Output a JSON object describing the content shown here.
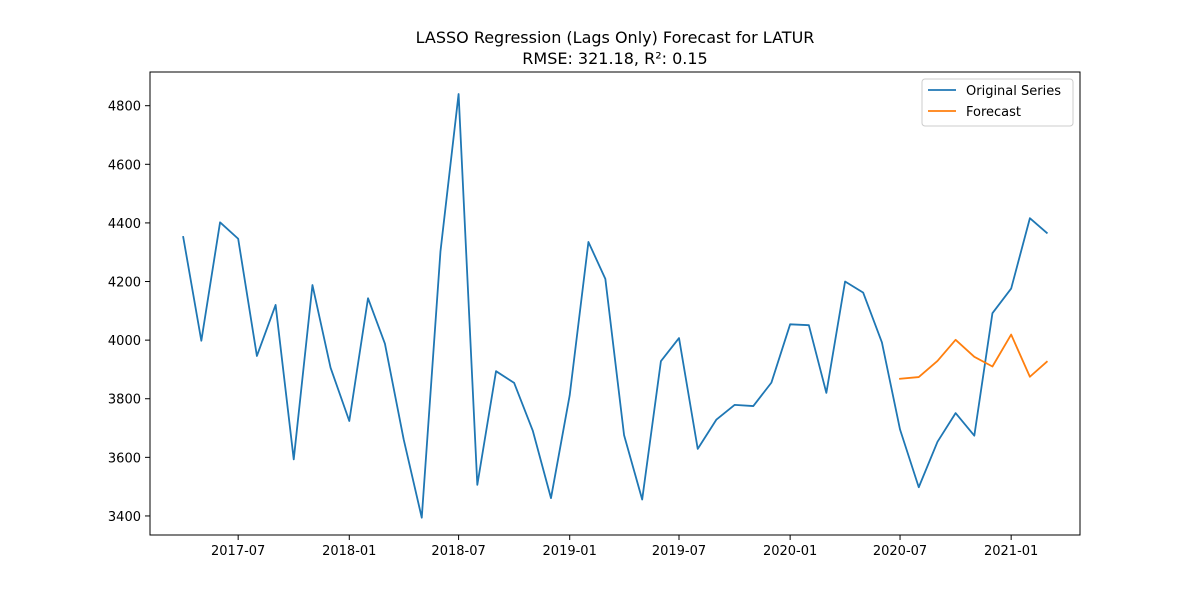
{
  "chart_data": {
    "type": "line",
    "title": "LASSO Regression (Lags Only) Forecast for LATUR",
    "subtitle": "RMSE: 321.18, R²: 0.15",
    "xlabel": "",
    "ylabel": "",
    "xlim": [
      "2017-02-05",
      "2021-04-25"
    ],
    "ylim": [
      3335,
      4915
    ],
    "x_ticks": [
      "2017-07",
      "2018-01",
      "2018-07",
      "2019-01",
      "2019-07",
      "2020-01",
      "2020-07",
      "2021-01"
    ],
    "y_ticks": [
      3400,
      3600,
      3800,
      4000,
      4200,
      4400,
      4600,
      4800
    ],
    "grid": false,
    "legend_position": "top-right",
    "series": [
      {
        "name": "Original Series",
        "color": "#1f77b4",
        "x": [
          "2017-04",
          "2017-05",
          "2017-06",
          "2017-07",
          "2017-08",
          "2017-09",
          "2017-10",
          "2017-11",
          "2017-12",
          "2018-01",
          "2018-02",
          "2018-03",
          "2018-04",
          "2018-05",
          "2018-06",
          "2018-07",
          "2018-08",
          "2018-09",
          "2018-10",
          "2018-11",
          "2018-12",
          "2019-01",
          "2019-02",
          "2019-03",
          "2019-04",
          "2019-05",
          "2019-06",
          "2019-07",
          "2019-08",
          "2019-09",
          "2019-10",
          "2019-11",
          "2019-12",
          "2020-01",
          "2020-02",
          "2020-03",
          "2020-04",
          "2020-05",
          "2020-06",
          "2020-07",
          "2020-08",
          "2020-09",
          "2020-10",
          "2020-11",
          "2020-12",
          "2021-01",
          "2021-02",
          "2021-03"
        ],
        "values": [
          4352,
          3998,
          4402,
          4346,
          3946,
          4120,
          3593,
          4188,
          3906,
          3724,
          4143,
          3988,
          3662,
          3394,
          4303,
          4840,
          3506,
          3894,
          3854,
          3690,
          3461,
          3812,
          4335,
          4209,
          3676,
          3456,
          3928,
          4007,
          3629,
          3729,
          3779,
          3775,
          3855,
          4054,
          4051,
          3820,
          4200,
          4162,
          3992,
          3695,
          3498,
          3653,
          3751,
          3674,
          4092,
          4176,
          4416,
          4366
        ]
      },
      {
        "name": "Forecast",
        "color": "#ff7f0e",
        "x": [
          "2020-07",
          "2020-08",
          "2020-09",
          "2020-10",
          "2020-11",
          "2020-12",
          "2021-01",
          "2021-02",
          "2021-03"
        ],
        "values": [
          3868,
          3874,
          3929,
          4001,
          3943,
          3910,
          4019,
          3875,
          3926
        ]
      }
    ]
  }
}
